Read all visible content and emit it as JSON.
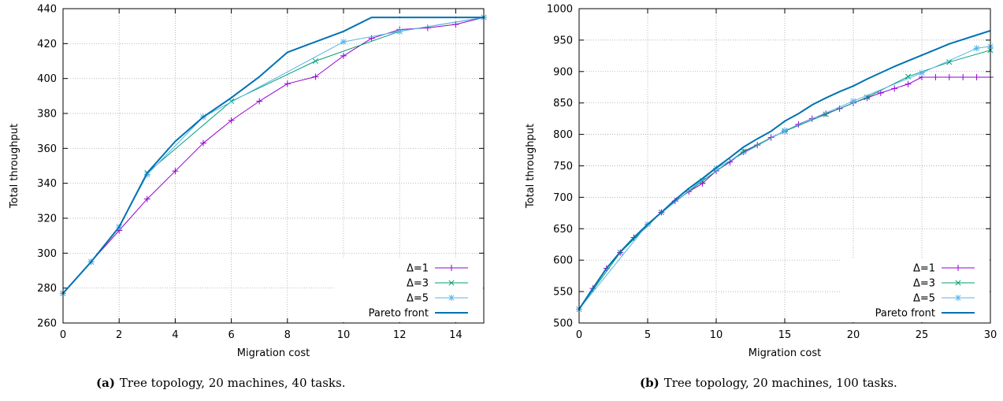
{
  "chart_data": [
    {
      "type": "line",
      "xlabel": "Migration cost",
      "ylabel": "Total throughput",
      "xlim": [
        0,
        15
      ],
      "ylim": [
        260,
        440
      ],
      "xticks": [
        0,
        2,
        4,
        6,
        8,
        10,
        12,
        14
      ],
      "yticks": [
        260,
        280,
        300,
        320,
        340,
        360,
        380,
        400,
        420,
        440
      ],
      "grid": true,
      "legend_position": "bottom-right",
      "caption_label": "(a)",
      "caption_text": "Tree topology, 20 machines, 40 tasks.",
      "series": [
        {
          "name": "Δ=1",
          "color": "#9400d3",
          "marker": "plus",
          "x": [
            0,
            1,
            2,
            3,
            4,
            5,
            6,
            7,
            8,
            9,
            10,
            11,
            12,
            13,
            14,
            15
          ],
          "y": [
            277,
            295,
            313,
            331,
            347,
            363,
            376,
            387,
            397,
            401,
            413,
            423,
            428,
            429,
            431,
            435
          ]
        },
        {
          "name": "Δ=3",
          "color": "#009e73",
          "marker": "x",
          "x": [
            0,
            1,
            2,
            3,
            6,
            9,
            12,
            15
          ],
          "y": [
            277,
            295,
            315,
            346,
            387,
            410,
            427,
            435
          ]
        },
        {
          "name": "Δ=5",
          "color": "#56b4e9",
          "marker": "star",
          "x": [
            0,
            1,
            2,
            3,
            5,
            10,
            12,
            15
          ],
          "y": [
            277,
            295,
            315,
            345,
            378,
            421,
            427,
            435
          ]
        },
        {
          "name": "Pareto front",
          "color": "#0072b2",
          "marker": "none",
          "x": [
            0,
            1,
            2,
            3,
            4,
            5,
            6,
            7,
            8,
            9,
            10,
            11,
            12,
            13,
            14,
            15
          ],
          "y": [
            277,
            295,
            315,
            346,
            364,
            378,
            389,
            401,
            415,
            421,
            427,
            435,
            435,
            435,
            435,
            435
          ]
        }
      ]
    },
    {
      "type": "line",
      "xlabel": "Migration cost",
      "ylabel": "Total throughput",
      "xlim": [
        0,
        30
      ],
      "ylim": [
        500,
        1000
      ],
      "xticks": [
        0,
        5,
        10,
        15,
        20,
        25,
        30
      ],
      "yticks": [
        500,
        550,
        600,
        650,
        700,
        750,
        800,
        850,
        900,
        950,
        1000
      ],
      "grid": true,
      "legend_position": "bottom-right",
      "caption_label": "(b)",
      "caption_text": "Tree topology, 20 machines, 100 tasks.",
      "series": [
        {
          "name": "Δ=1",
          "color": "#9400d3",
          "marker": "plus",
          "x": [
            0,
            1,
            2,
            3,
            4,
            5,
            6,
            7,
            8,
            9,
            10,
            11,
            12,
            13,
            14,
            15,
            16,
            17,
            18,
            19,
            20,
            21,
            22,
            23,
            24,
            25,
            26,
            27,
            28,
            29,
            30
          ],
          "y": [
            522,
            555,
            587,
            612,
            636,
            657,
            676,
            694,
            709,
            722,
            742,
            756,
            772,
            783,
            795,
            805,
            816,
            825,
            833,
            841,
            850,
            858,
            866,
            873,
            880,
            891,
            891,
            891,
            891,
            891,
            891
          ]
        },
        {
          "name": "Δ=3",
          "color": "#009e73",
          "marker": "x",
          "x": [
            0,
            3,
            6,
            9,
            12,
            15,
            18,
            21,
            24,
            27,
            30
          ],
          "y": [
            522,
            612,
            676,
            726,
            773,
            805,
            832,
            859,
            892,
            915,
            934
          ]
        },
        {
          "name": "Δ=5",
          "color": "#56b4e9",
          "marker": "star",
          "x": [
            0,
            5,
            10,
            15,
            20,
            25,
            29,
            30
          ],
          "y": [
            522,
            657,
            746,
            806,
            853,
            898,
            937,
            940
          ]
        },
        {
          "name": "Pareto front",
          "color": "#0072b2",
          "marker": "none",
          "x": [
            0,
            1,
            2,
            3,
            4,
            5,
            6,
            7,
            8,
            9,
            10,
            11,
            12,
            13,
            14,
            15,
            16,
            17,
            18,
            19,
            20,
            21,
            22,
            23,
            24,
            25,
            26,
            27,
            28,
            29,
            30
          ],
          "y": [
            522,
            555,
            587,
            613,
            636,
            657,
            676,
            696,
            714,
            730,
            747,
            763,
            780,
            793,
            805,
            821,
            833,
            847,
            858,
            868,
            877,
            888,
            898,
            908,
            917,
            926,
            935,
            944,
            951,
            958,
            965
          ]
        }
      ]
    }
  ]
}
